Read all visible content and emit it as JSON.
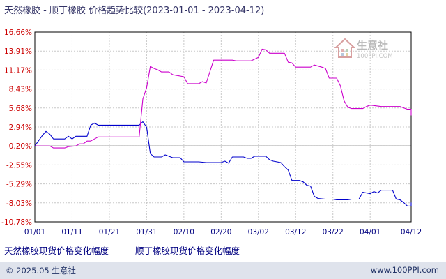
{
  "chart_data": {
    "type": "line",
    "title": "天然橡胶 - 顺丁橡胶 价格趋势比较(2023-01-01 - 2023-04-12)",
    "y_ticks": [
      "16.66%",
      "13.91%",
      "11.17%",
      "8.43%",
      "5.68%",
      "2.94%",
      "0.20%",
      "-2.55%",
      "-5.29%",
      "-8.03%",
      "-10.78%"
    ],
    "ylim": [
      -10.78,
      16.66
    ],
    "x_ticks": [
      "01/01",
      "01/11",
      "01/21",
      "01/31",
      "02/10",
      "02/20",
      "03/02",
      "03/12",
      "03/22",
      "04/01",
      "04/12"
    ],
    "x_tick_days": [
      0,
      10,
      20,
      30,
      40,
      50,
      60,
      70,
      80,
      90,
      101
    ],
    "xlim_days": [
      0,
      101
    ],
    "x_unit": "days from 2023-01-01",
    "grid": true,
    "series": [
      {
        "name": "天然橡胶现货价格变化幅度",
        "color": "#0000cc",
        "points": [
          [
            0,
            0.2
          ],
          [
            2,
            1.7
          ],
          [
            3,
            2.3
          ],
          [
            4,
            1.9
          ],
          [
            5,
            1.2
          ],
          [
            6,
            1.2
          ],
          [
            8,
            1.2
          ],
          [
            9,
            1.6
          ],
          [
            10,
            1.2
          ],
          [
            11,
            1.6
          ],
          [
            14,
            1.6
          ],
          [
            15,
            3.2
          ],
          [
            16,
            3.5
          ],
          [
            17,
            3.2
          ],
          [
            28,
            3.2
          ],
          [
            29,
            3.7
          ],
          [
            30,
            2.9
          ],
          [
            31,
            -0.9
          ],
          [
            32,
            -1.4
          ],
          [
            34,
            -1.4
          ],
          [
            35,
            -1.1
          ],
          [
            37,
            -1.5
          ],
          [
            39,
            -1.5
          ],
          [
            40,
            -2.1
          ],
          [
            44,
            -2.1
          ],
          [
            46,
            -2.2
          ],
          [
            50,
            -2.2
          ],
          [
            51,
            -2.0
          ],
          [
            52,
            -2.3
          ],
          [
            53,
            -1.4
          ],
          [
            56,
            -1.4
          ],
          [
            57,
            -1.6
          ],
          [
            58,
            -1.6
          ],
          [
            59,
            -1.3
          ],
          [
            62,
            -1.3
          ],
          [
            63,
            -1.8
          ],
          [
            64,
            -2.0
          ],
          [
            66,
            -2.2
          ],
          [
            67,
            -2.8
          ],
          [
            68,
            -3.3
          ],
          [
            69,
            -4.8
          ],
          [
            71,
            -4.8
          ],
          [
            72,
            -5.0
          ],
          [
            73,
            -5.5
          ],
          [
            74,
            -5.6
          ],
          [
            75,
            -7.1
          ],
          [
            76,
            -7.4
          ],
          [
            78,
            -7.5
          ],
          [
            80,
            -7.5
          ],
          [
            81,
            -7.6
          ],
          [
            84,
            -7.6
          ],
          [
            85,
            -7.5
          ],
          [
            87,
            -7.5
          ],
          [
            88,
            -6.5
          ],
          [
            90,
            -6.7
          ],
          [
            91,
            -6.4
          ],
          [
            92,
            -6.6
          ],
          [
            93,
            -6.2
          ],
          [
            96,
            -6.2
          ],
          [
            97,
            -7.5
          ],
          [
            98,
            -7.6
          ],
          [
            99,
            -8.0
          ],
          [
            100,
            -8.5
          ],
          [
            102,
            -8.5
          ],
          [
            103,
            -8.3
          ],
          [
            105,
            -8.2
          ],
          [
            106,
            -8.0
          ]
        ]
      },
      {
        "name": "顺丁橡胶现货价格变化幅度",
        "color": "#cc00cc",
        "points": [
          [
            0,
            0.2
          ],
          [
            4,
            0.2
          ],
          [
            5,
            -0.1
          ],
          [
            8,
            -0.1
          ],
          [
            9,
            0.1
          ],
          [
            11,
            0.2
          ],
          [
            12,
            0.5
          ],
          [
            13,
            0.5
          ],
          [
            14,
            0.9
          ],
          [
            15,
            0.9
          ],
          [
            16,
            1.2
          ],
          [
            17,
            1.5
          ],
          [
            28,
            1.5
          ],
          [
            29,
            7.0
          ],
          [
            30,
            8.6
          ],
          [
            31,
            11.7
          ],
          [
            32,
            11.4
          ],
          [
            33,
            11.2
          ],
          [
            34,
            10.9
          ],
          [
            36,
            10.9
          ],
          [
            37,
            10.5
          ],
          [
            40,
            10.2
          ],
          [
            41,
            9.2
          ],
          [
            44,
            9.2
          ],
          [
            45,
            9.5
          ],
          [
            46,
            9.3
          ],
          [
            48,
            12.6
          ],
          [
            53,
            12.6
          ],
          [
            54,
            12.5
          ],
          [
            58,
            12.5
          ],
          [
            60,
            13.0
          ],
          [
            61,
            14.2
          ],
          [
            62,
            14.1
          ],
          [
            63,
            13.6
          ],
          [
            67,
            13.6
          ],
          [
            68,
            12.3
          ],
          [
            69,
            12.2
          ],
          [
            70,
            11.6
          ],
          [
            74,
            11.6
          ],
          [
            75,
            11.9
          ],
          [
            77,
            11.6
          ],
          [
            78,
            11.4
          ],
          [
            79,
            10.0
          ],
          [
            81,
            10.0
          ],
          [
            82,
            8.9
          ],
          [
            83,
            6.7
          ],
          [
            84,
            5.8
          ],
          [
            85,
            5.6
          ],
          [
            88,
            5.6
          ],
          [
            89,
            5.9
          ],
          [
            90,
            6.1
          ],
          [
            93,
            5.9
          ],
          [
            98,
            5.9
          ],
          [
            100,
            5.5
          ],
          [
            104,
            5.5
          ],
          [
            105,
            4.8
          ],
          [
            106,
            4.6
          ]
        ]
      }
    ],
    "legend": {
      "placement": "bottom-left",
      "items": [
        {
          "label": "天然橡胶现货价格变化幅度",
          "color": "#0000cc"
        },
        {
          "label": "顺丁橡胶现货价格变化幅度",
          "color": "#cc00cc"
        }
      ]
    }
  },
  "footer": {
    "left": "© 2025.05 生意社",
    "right": "www.100PPI.com"
  },
  "watermark": {
    "text": "生意社",
    "url": "100PPI.COM"
  }
}
